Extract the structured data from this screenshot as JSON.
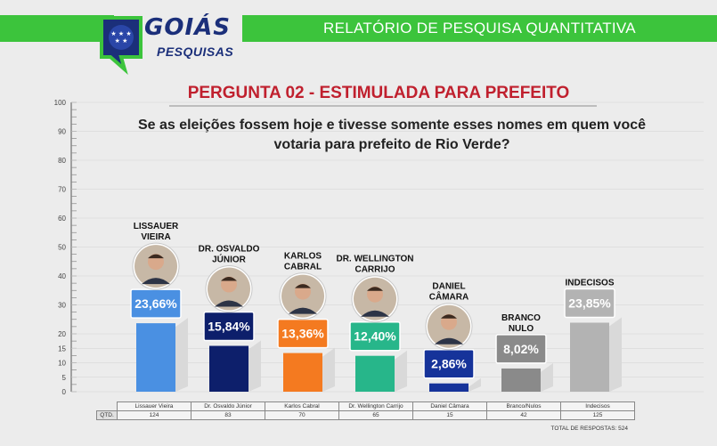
{
  "header": {
    "title": "RELATÓRIO DE PESQUISA QUANTITATIVA",
    "logo_line1": "GOIÁS",
    "logo_line2": "PESQUISAS"
  },
  "page_title": "PERGUNTA 02 - ESTIMULADA PARA PREFEITO",
  "question": "Se as eleições fossem hoje e tivesse somente esses nomes em quem você votaria para prefeito de Rio Verde?",
  "colors": {
    "header_green": "#3cc43c",
    "title_red": "#c0202e"
  },
  "chart_data": {
    "type": "bar",
    "ylim": [
      0,
      100
    ],
    "yticks": [
      "0",
      "5",
      "10",
      "15",
      "20",
      "30",
      "40",
      "50",
      "60",
      "70",
      "80",
      "90",
      "100"
    ],
    "categories": [
      "LISSAUER VIEIRA",
      "DR. OSVALDO JÚNIOR",
      "KARLOS CABRAL",
      "DR. WELLINGTON CARRIJO",
      "DANIEL CÂMARA",
      "BRANCO NULO",
      "INDECISOS"
    ],
    "values": [
      23.66,
      15.84,
      13.36,
      12.4,
      2.86,
      8.02,
      23.85
    ],
    "value_labels": [
      "23,66%",
      "15,84%",
      "13,36%",
      "12,40%",
      "2,86%",
      "8,02%",
      "23,85%"
    ],
    "colors": [
      "#4a90e2",
      "#0d1f6b",
      "#f47a20",
      "#27b68a",
      "#16339a",
      "#8a8a8a",
      "#b3b3b3"
    ],
    "candidate_photos": [
      true,
      true,
      true,
      true,
      true,
      false,
      false
    ],
    "label_lines": [
      [
        "LISSAUER",
        "VIEIRA"
      ],
      [
        "DR. OSVALDO",
        "JÚNIOR"
      ],
      [
        "KARLOS",
        "CABRAL"
      ],
      [
        "DR. WELLINGTON",
        "CARRIJO"
      ],
      [
        "DANIEL",
        "CÂMARA"
      ],
      [
        "BRANCO",
        "NULO"
      ],
      [
        "INDECISOS"
      ]
    ]
  },
  "table": {
    "qtd_label": "QTD.",
    "names": [
      "Lissauer Vieira",
      "Dr. Osvaldo Júnior",
      "Karlos Cabral",
      "Dr. Wellington Carrijo",
      "Daniel Câmara",
      "Branco/Nulos",
      "Indecisos"
    ],
    "counts": [
      "124",
      "83",
      "70",
      "65",
      "15",
      "42",
      "125"
    ]
  },
  "total_label": "TOTAL DE RESPOSTAS: 524"
}
